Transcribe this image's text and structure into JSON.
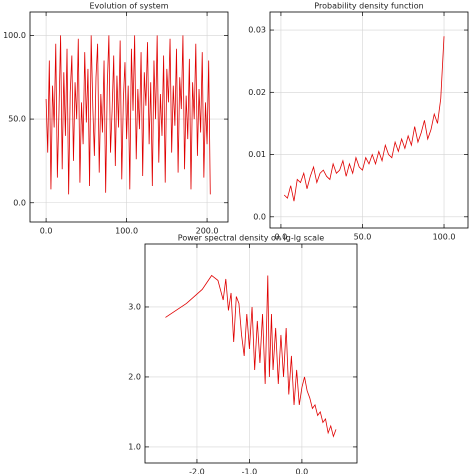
{
  "chart_data": [
    {
      "type": "line",
      "title": "Evolution of system",
      "grid": true,
      "xlim": [
        -20,
        226
      ],
      "ylim": [
        -11.5,
        114
      ],
      "xticks": [
        {
          "value": 0,
          "label": "0.0"
        },
        {
          "value": 100,
          "label": "100.0"
        },
        {
          "value": 200,
          "label": "200.0"
        }
      ],
      "yticks": [
        {
          "value": 0,
          "label": "0.0"
        },
        {
          "value": 50,
          "label": "50.0"
        },
        {
          "value": 100,
          "label": "100.0"
        }
      ],
      "x": [
        0,
        2,
        4,
        6,
        8,
        10,
        12,
        14,
        16,
        18,
        20,
        22,
        24,
        26,
        28,
        30,
        32,
        34,
        36,
        38,
        40,
        42,
        44,
        46,
        48,
        50,
        52,
        54,
        56,
        58,
        60,
        62,
        64,
        66,
        68,
        70,
        72,
        74,
        76,
        78,
        80,
        82,
        84,
        86,
        88,
        90,
        92,
        94,
        96,
        98,
        100,
        102,
        104,
        106,
        108,
        110,
        112,
        114,
        116,
        118,
        120,
        122,
        124,
        126,
        128,
        130,
        132,
        134,
        136,
        138,
        140,
        142,
        144,
        146,
        148,
        150,
        152,
        154,
        156,
        158,
        160,
        162,
        164,
        166,
        168,
        170,
        172,
        174,
        176,
        178,
        180,
        182,
        184,
        186,
        188,
        190,
        192,
        194,
        196,
        198,
        200,
        202,
        204
      ],
      "series": [
        {
          "color": "#e00000",
          "values": [
            62,
            30,
            85,
            8,
            70,
            45,
            95,
            15,
            55,
            100,
            20,
            78,
            40,
            92,
            5,
            66,
            88,
            25,
            72,
            50,
            98,
            12,
            60,
            35,
            90,
            48,
            80,
            10,
            100,
            58,
            28,
            75,
            95,
            18,
            65,
            42,
            85,
            6,
            70,
            100,
            30,
            55,
            88,
            22,
            76,
            45,
            97,
            14,
            62,
            84,
            38,
            70,
            8,
            92,
            55,
            100,
            26,
            68,
            44,
            90,
            16,
            78,
            58,
            96,
            35,
            72,
            10,
            85,
            50,
            100,
            24,
            65,
            40,
            88,
            12,
            80,
            60,
            98,
            30,
            70,
            46,
            92,
            18,
            75,
            56,
            100,
            20,
            64,
            38,
            86,
            8,
            72,
            50,
            95,
            28,
            68,
            42,
            90,
            15,
            60,
            35,
            85,
            5
          ]
        }
      ]
    },
    {
      "type": "line",
      "title": "Probability density function",
      "grid": true,
      "xlim": [
        -6.7,
        114.7
      ],
      "ylim": [
        -0.0018,
        0.0329
      ],
      "xticks": [
        {
          "value": 0,
          "label": "0.0"
        },
        {
          "value": 50,
          "label": "50.0"
        },
        {
          "value": 100,
          "label": "100.0"
        }
      ],
      "yticks": [
        {
          "value": 0,
          "label": "0.0"
        },
        0.01,
        0.02,
        0.03
      ],
      "x": [
        2,
        4,
        6,
        8,
        10,
        12,
        14,
        16,
        18,
        20,
        22,
        24,
        26,
        28,
        30,
        32,
        34,
        36,
        38,
        40,
        42,
        44,
        46,
        48,
        50,
        52,
        54,
        56,
        58,
        60,
        62,
        64,
        66,
        68,
        70,
        72,
        74,
        76,
        78,
        80,
        82,
        84,
        86,
        88,
        90,
        92,
        94,
        96,
        98,
        100
      ],
      "series": [
        {
          "color": "#e00000",
          "values": [
            0.0035,
            0.003,
            0.005,
            0.0025,
            0.006,
            0.0055,
            0.007,
            0.0045,
            0.0065,
            0.008,
            0.0055,
            0.007,
            0.0075,
            0.0065,
            0.006,
            0.0085,
            0.007,
            0.0075,
            0.009,
            0.0065,
            0.0085,
            0.007,
            0.0095,
            0.008,
            0.0075,
            0.0095,
            0.0085,
            0.01,
            0.0085,
            0.0105,
            0.009,
            0.0115,
            0.01,
            0.0095,
            0.012,
            0.0105,
            0.0125,
            0.011,
            0.013,
            0.0115,
            0.0145,
            0.012,
            0.0135,
            0.0155,
            0.0125,
            0.014,
            0.0165,
            0.015,
            0.019,
            0.029
          ]
        }
      ]
    },
    {
      "type": "line",
      "title": "Power spectral density on lg-lg scale",
      "grid": true,
      "xlim": [
        -2.99,
        1.05
      ],
      "ylim": [
        0.77,
        3.9
      ],
      "xticks": [
        {
          "value": -2,
          "label": "-2.0"
        },
        {
          "value": -1,
          "label": "-1.0"
        },
        {
          "value": 0,
          "label": "0.0"
        }
      ],
      "yticks": [
        {
          "value": 1,
          "label": "1.0"
        },
        {
          "value": 2,
          "label": "2.0"
        },
        {
          "value": 3,
          "label": "3.0"
        }
      ],
      "x": [
        -2.6,
        -2.2,
        -1.9,
        -1.72,
        -1.6,
        -1.5,
        -1.45,
        -1.4,
        -1.35,
        -1.3,
        -1.25,
        -1.2,
        -1.15,
        -1.1,
        -1.05,
        -1.0,
        -0.95,
        -0.9,
        -0.85,
        -0.8,
        -0.75,
        -0.7,
        -0.65,
        -0.62,
        -0.58,
        -0.55,
        -0.5,
        -0.45,
        -0.4,
        -0.35,
        -0.3,
        -0.25,
        -0.2,
        -0.15,
        -0.1,
        -0.05,
        0.0,
        0.05,
        0.1,
        0.15,
        0.2,
        0.25,
        0.3,
        0.35,
        0.4,
        0.45,
        0.5,
        0.55,
        0.6,
        0.65
      ],
      "series": [
        {
          "color": "#e00000",
          "values": [
            2.85,
            3.05,
            3.25,
            3.45,
            3.38,
            3.1,
            3.4,
            2.95,
            3.2,
            2.5,
            3.15,
            3.05,
            2.6,
            2.3,
            2.9,
            2.4,
            3.0,
            2.1,
            2.8,
            2.2,
            2.9,
            1.9,
            3.45,
            2.0,
            2.9,
            2.1,
            2.7,
            1.9,
            2.6,
            2.0,
            2.7,
            1.75,
            2.3,
            1.6,
            2.1,
            1.6,
            1.85,
            2.0,
            1.8,
            1.7,
            1.55,
            1.6,
            1.45,
            1.5,
            1.35,
            1.4,
            1.2,
            1.3,
            1.15,
            1.25
          ]
        }
      ]
    }
  ]
}
